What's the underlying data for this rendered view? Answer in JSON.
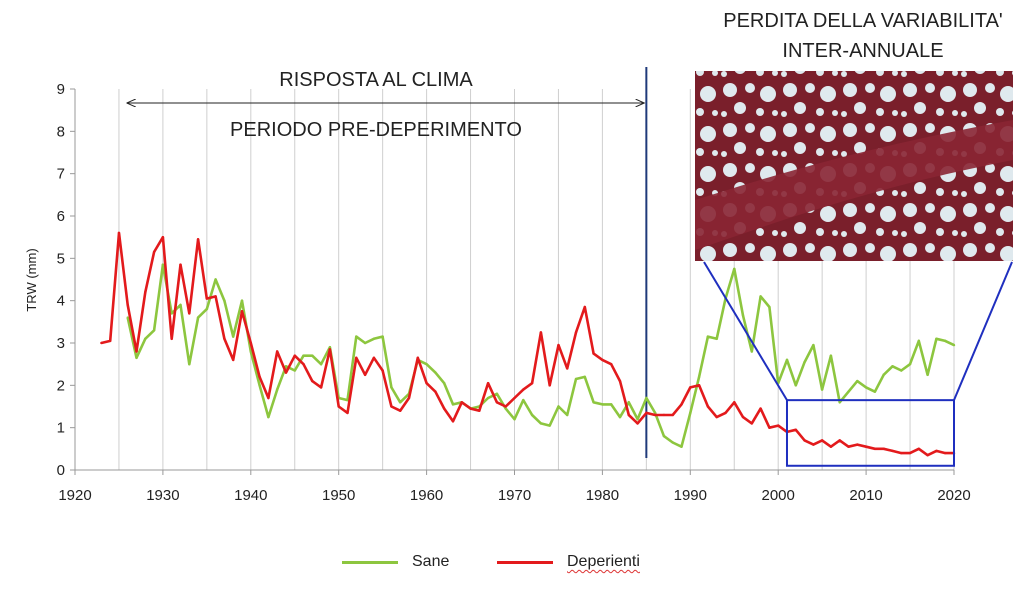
{
  "chart_data": {
    "type": "line",
    "ylabel": "TRW (mm)",
    "xlim": [
      1920,
      2020
    ],
    "ylim": [
      0,
      9
    ],
    "xticks": [
      "1920",
      "1930",
      "1940",
      "1950",
      "1960",
      "1970",
      "1980",
      "1990",
      "2000",
      "2010",
      "2020"
    ],
    "yticks": [
      "0",
      "1",
      "2",
      "3",
      "4",
      "5",
      "6",
      "7",
      "8",
      "9"
    ],
    "grid": "vertical",
    "legend_position": "bottom",
    "annotations": {
      "period_top": "RISPOSTA AL CLIMA",
      "period_bottom": "PERIODO PRE-DEPERIMENTO",
      "loss_line1": "PERDITA DELLA VARIABILITA'",
      "loss_line2": "INTER-ANNUALE",
      "divider_year": 1985,
      "arrow_from": 1926,
      "arrow_to": 1985,
      "zoom_box_x": [
        2001,
        2020
      ],
      "zoom_box_y": [
        0.1,
        1.65
      ]
    },
    "series": [
      {
        "name": "Sane",
        "color": "#8dc63f",
        "x": [
          1926,
          1927,
          1928,
          1929,
          1930,
          1931,
          1932,
          1933,
          1934,
          1935,
          1936,
          1937,
          1938,
          1939,
          1940,
          1941,
          1942,
          1943,
          1944,
          1945,
          1946,
          1947,
          1948,
          1949,
          1950,
          1951,
          1952,
          1953,
          1954,
          1955,
          1956,
          1957,
          1958,
          1959,
          1960,
          1961,
          1962,
          1963,
          1964,
          1965,
          1966,
          1967,
          1968,
          1969,
          1970,
          1971,
          1972,
          1973,
          1974,
          1975,
          1976,
          1977,
          1978,
          1979,
          1980,
          1981,
          1982,
          1983,
          1984,
          1985,
          1986,
          1987,
          1988,
          1989,
          1990,
          1991,
          1992,
          1993,
          1994,
          1995,
          1996,
          1997,
          1998,
          1999,
          2000,
          2001,
          2002,
          2003,
          2004,
          2005,
          2006,
          2007,
          2008,
          2009,
          2010,
          2011,
          2012,
          2013,
          2014,
          2015,
          2016,
          2017,
          2018,
          2019,
          2020
        ],
        "values": [
          3.6,
          2.65,
          3.1,
          3.3,
          4.85,
          3.7,
          3.9,
          2.5,
          3.6,
          3.8,
          4.5,
          4.0,
          3.15,
          4.0,
          2.8,
          2.0,
          1.25,
          1.9,
          2.45,
          2.35,
          2.7,
          2.7,
          2.5,
          2.9,
          1.7,
          1.65,
          3.15,
          3.0,
          3.1,
          3.15,
          1.95,
          1.6,
          1.8,
          2.6,
          2.5,
          2.3,
          2.05,
          1.55,
          1.6,
          1.45,
          1.5,
          1.7,
          1.8,
          1.45,
          1.2,
          1.65,
          1.3,
          1.1,
          1.05,
          1.5,
          1.3,
          2.15,
          2.2,
          1.6,
          1.55,
          1.55,
          1.25,
          1.6,
          1.2,
          1.7,
          1.35,
          0.8,
          0.65,
          0.55,
          1.35,
          2.2,
          3.15,
          3.1,
          4.05,
          4.75,
          3.65,
          2.8,
          4.1,
          3.85,
          2.05,
          2.6,
          2.0,
          2.55,
          2.95,
          1.9,
          2.7,
          1.6,
          1.85,
          2.1,
          1.95,
          1.85,
          2.25,
          2.45,
          2.35,
          2.5,
          3.05,
          2.25,
          3.1,
          3.05,
          2.95
        ]
      },
      {
        "name": "Deperienti",
        "color": "#e31a1c",
        "x": [
          1923,
          1924,
          1925,
          1926,
          1927,
          1928,
          1929,
          1930,
          1931,
          1932,
          1933,
          1934,
          1935,
          1936,
          1937,
          1938,
          1939,
          1940,
          1941,
          1942,
          1943,
          1944,
          1945,
          1946,
          1947,
          1948,
          1949,
          1950,
          1951,
          1952,
          1953,
          1954,
          1955,
          1956,
          1957,
          1958,
          1959,
          1960,
          1961,
          1962,
          1963,
          1964,
          1965,
          1966,
          1967,
          1968,
          1969,
          1970,
          1971,
          1972,
          1973,
          1974,
          1975,
          1976,
          1977,
          1978,
          1979,
          1980,
          1981,
          1982,
          1983,
          1984,
          1985,
          1986,
          1987,
          1988,
          1989,
          1990,
          1991,
          1992,
          1993,
          1994,
          1995,
          1996,
          1997,
          1998,
          1999,
          2000,
          2001,
          2002,
          2003,
          2004,
          2005,
          2006,
          2007,
          2008,
          2009,
          2010,
          2011,
          2012,
          2013,
          2014,
          2015,
          2016,
          2017,
          2018,
          2019,
          2020
        ],
        "values": [
          3.0,
          3.05,
          5.6,
          3.9,
          2.8,
          4.2,
          5.15,
          5.5,
          3.1,
          4.85,
          3.7,
          5.45,
          4.05,
          4.1,
          3.1,
          2.6,
          3.75,
          3.0,
          2.2,
          1.7,
          2.8,
          2.3,
          2.7,
          2.5,
          2.1,
          1.95,
          2.85,
          1.5,
          1.35,
          2.65,
          2.25,
          2.65,
          2.35,
          1.5,
          1.4,
          1.7,
          2.65,
          2.05,
          1.85,
          1.45,
          1.15,
          1.6,
          1.45,
          1.4,
          2.05,
          1.6,
          1.5,
          1.7,
          1.9,
          2.05,
          3.25,
          2.0,
          2.95,
          2.4,
          3.25,
          3.85,
          2.75,
          2.6,
          2.5,
          2.1,
          1.3,
          1.1,
          1.35,
          1.3,
          1.3,
          1.3,
          1.55,
          1.95,
          2.0,
          1.5,
          1.25,
          1.35,
          1.6,
          1.25,
          1.1,
          1.45,
          1.0,
          1.05,
          0.9,
          0.95,
          0.7,
          0.6,
          0.7,
          0.55,
          0.7,
          0.55,
          0.6,
          0.55,
          0.5,
          0.5,
          0.45,
          0.4,
          0.4,
          0.5,
          0.35,
          0.45,
          0.4,
          0.4
        ]
      }
    ]
  },
  "legend": {
    "sane_label": "Sane",
    "deperienti_label": "Deperienti"
  },
  "inset": {
    "description_icon": "wood-anatomy-micrograph"
  }
}
